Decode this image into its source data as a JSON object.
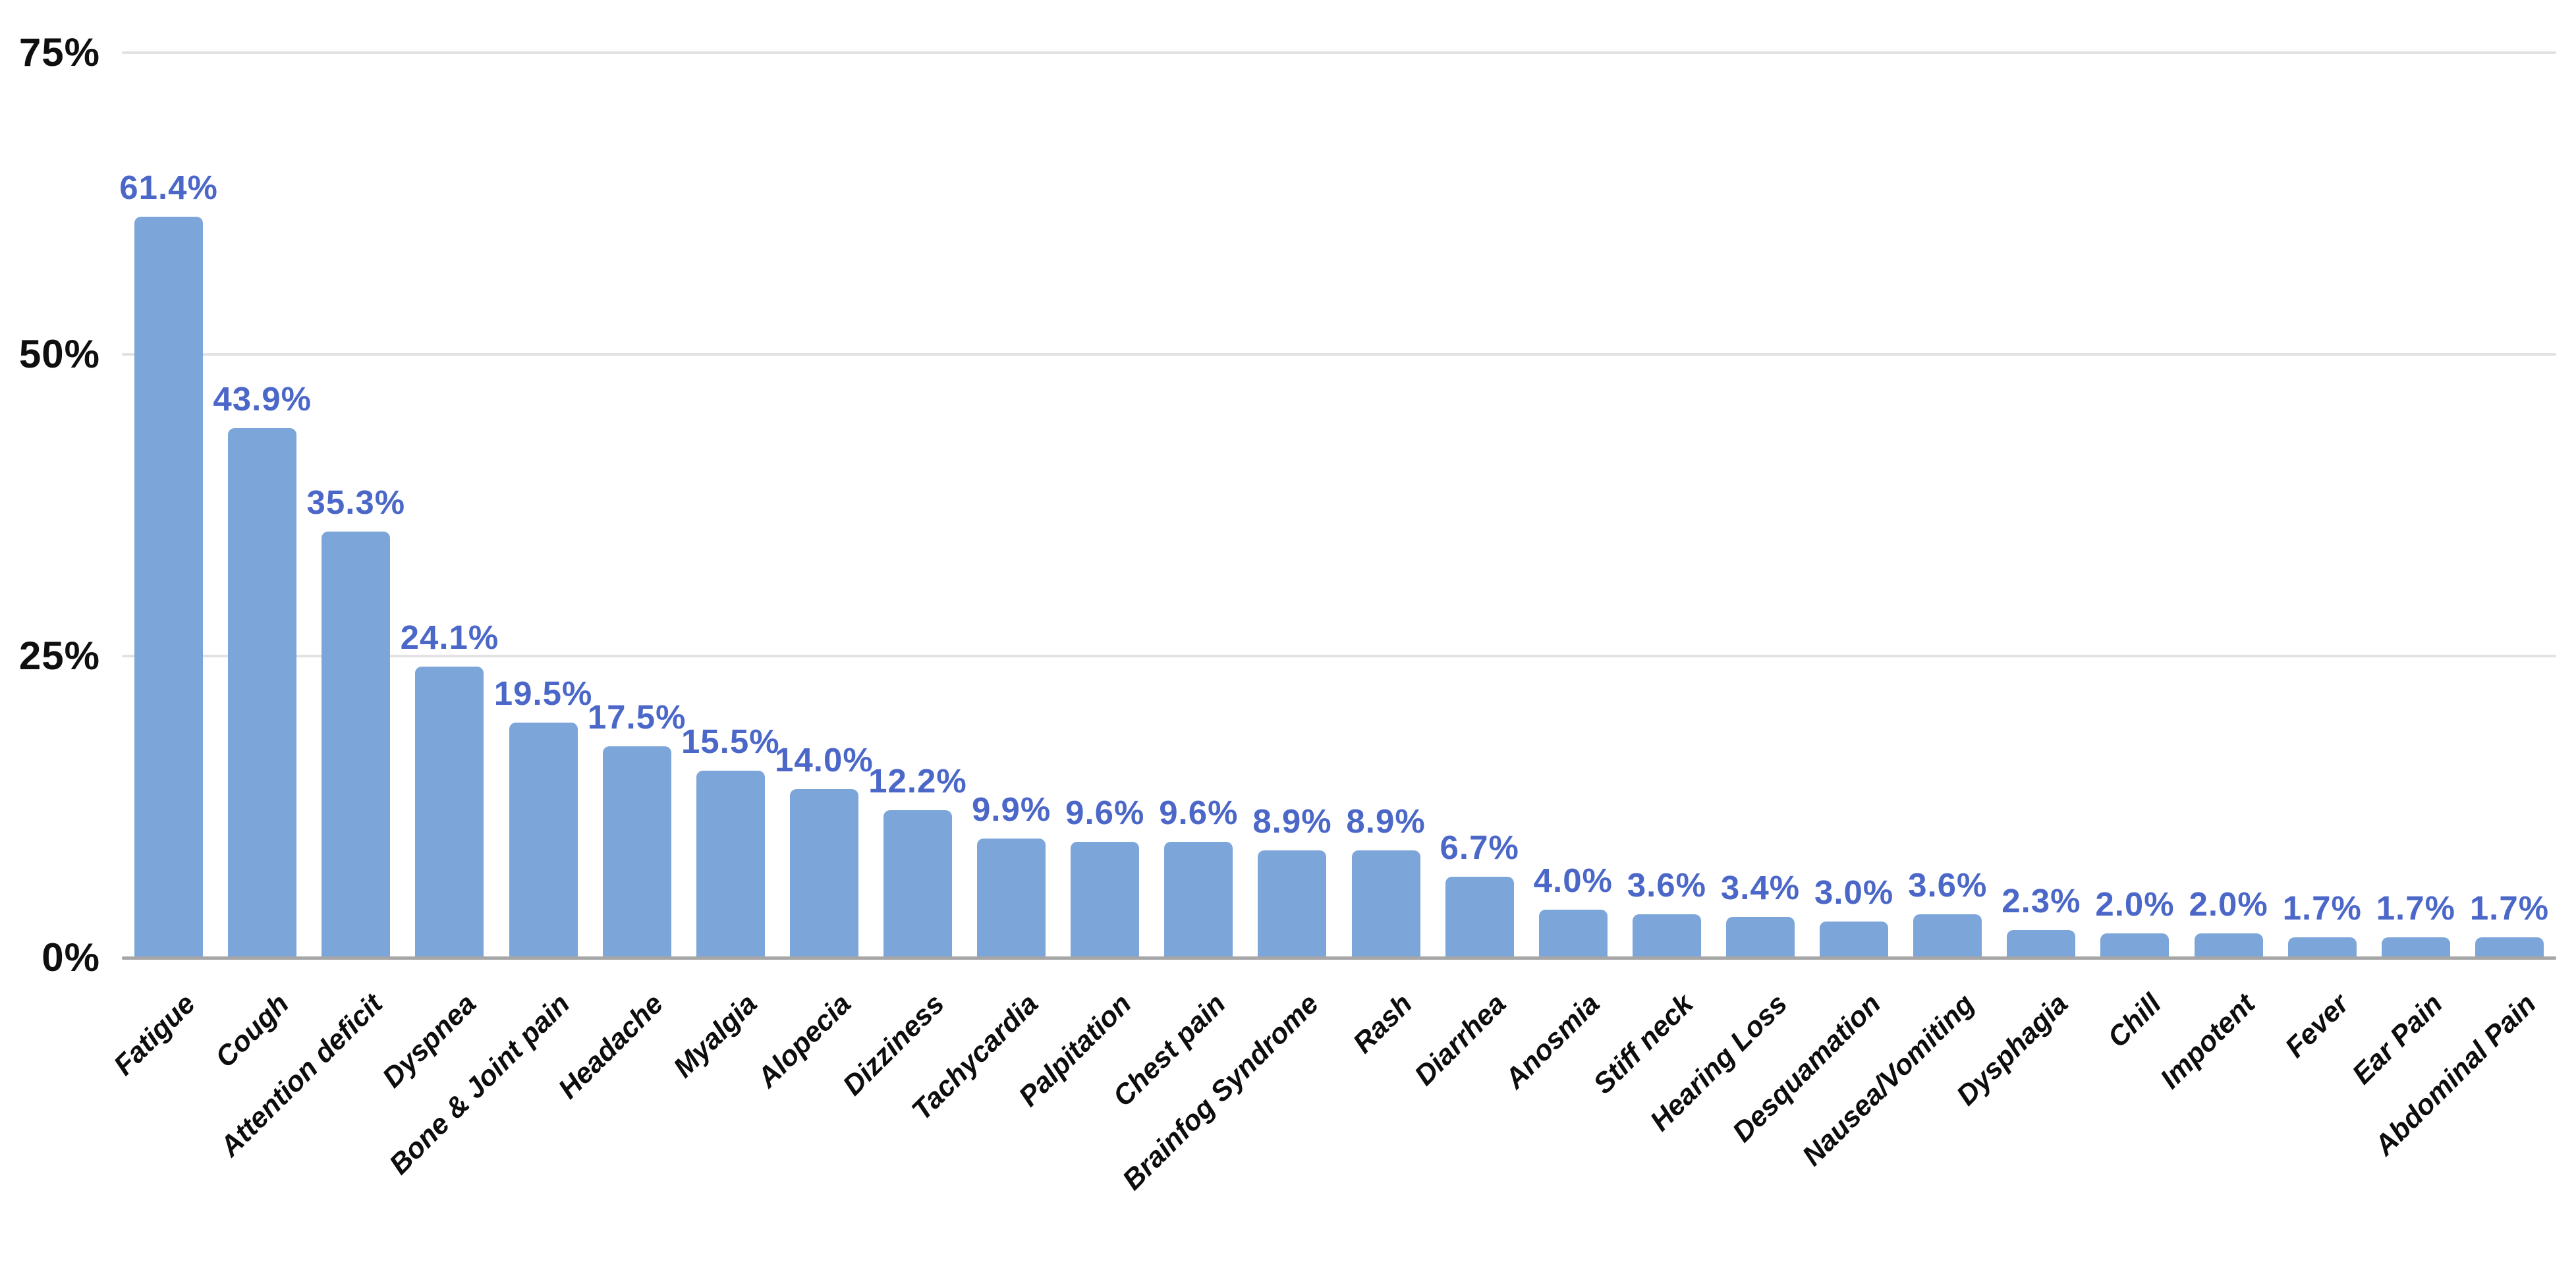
{
  "chart_data": {
    "type": "bar",
    "categories": [
      "Fatigue",
      "Cough",
      "Attention deficit",
      "Dyspnea",
      "Bone & Joint pain",
      "Headache",
      "Myalgia",
      "Alopecia",
      "Dizziness",
      "Tachycardia",
      "Palpitation",
      "Chest pain",
      "Brainfog Syndrome",
      "Rash",
      "Diarrhea",
      "Anosmia",
      "Stiff neck",
      "Hearing Loss",
      "Desquamation",
      "Nausea/Vomiting",
      "Dysphagia",
      "Chill",
      "Impotent",
      "Fever",
      "Ear Pain",
      "Abdominal Pain"
    ],
    "values": [
      61.4,
      43.9,
      35.3,
      24.1,
      19.5,
      17.5,
      15.5,
      14.0,
      12.2,
      9.9,
      9.6,
      9.6,
      8.9,
      8.9,
      6.7,
      4.0,
      3.6,
      3.4,
      3.0,
      3.6,
      2.3,
      2.0,
      2.0,
      1.7,
      1.7,
      1.7
    ],
    "value_labels": [
      "61.4%",
      "43.9%",
      "35.3%",
      "24.1%",
      "19.5%",
      "17.5%",
      "15.5%",
      "14.0%",
      "12.2%",
      "9.9%",
      "9.6%",
      "9.6%",
      "8.9%",
      "8.9%",
      "6.7%",
      "4.0%",
      "3.6%",
      "3.4%",
      "3.0%",
      "3.6%",
      "2.3%",
      "2.0%",
      "2.0%",
      "1.7%",
      "1.7%",
      "1.7%"
    ],
    "y_axis": {
      "max": 75,
      "ticks": [
        {
          "label": "0%",
          "value": 0
        },
        {
          "label": "25%",
          "value": 25
        },
        {
          "label": "50%",
          "value": 50
        },
        {
          "label": "75%",
          "value": 75
        }
      ]
    },
    "grid": true,
    "legend_position": "none",
    "colors": {
      "bar": "#7CA5D9",
      "value_label": "#4B67C8",
      "axis_label": "#0F0F0F",
      "category_label": "#0D0D0D",
      "gridline": "#E2E2E2",
      "baseline": "#A6A6A6",
      "background": "#FFFFFF"
    }
  }
}
